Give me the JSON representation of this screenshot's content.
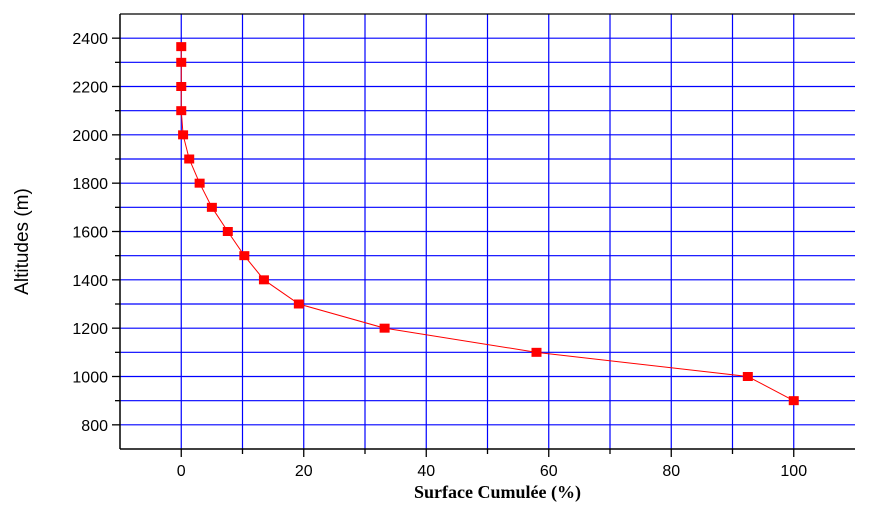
{
  "chart_data": {
    "type": "line",
    "title": "",
    "xlabel": "Surface Cumulée (%)",
    "ylabel": "Altitudes (m)",
    "xlim": [
      -10,
      110
    ],
    "ylim": [
      700,
      2500
    ],
    "xticks": [
      0,
      20,
      40,
      60,
      80,
      100
    ],
    "yticks": [
      800,
      1000,
      1200,
      1400,
      1600,
      1800,
      2000,
      2200,
      2400
    ],
    "x_tick_labels": [
      "0",
      "20",
      "40",
      "60",
      "80",
      "100"
    ],
    "y_tick_labels": [
      "800",
      "1000",
      "1200",
      "1400",
      "1600",
      "1800",
      "2000",
      "2200",
      "2400"
    ],
    "grid": true,
    "grid_color": "#0000ff",
    "series": [
      {
        "color": "#ff0000",
        "marker": "square",
        "points": [
          {
            "x": 0,
            "y": 2365
          },
          {
            "x": 0,
            "y": 2300
          },
          {
            "x": 0,
            "y": 2200
          },
          {
            "x": 0,
            "y": 2100
          },
          {
            "x": 0.3,
            "y": 2000
          },
          {
            "x": 1.3,
            "y": 1900
          },
          {
            "x": 3,
            "y": 1800
          },
          {
            "x": 5,
            "y": 1700
          },
          {
            "x": 7.6,
            "y": 1600
          },
          {
            "x": 10.3,
            "y": 1500
          },
          {
            "x": 13.5,
            "y": 1400
          },
          {
            "x": 19.2,
            "y": 1300
          },
          {
            "x": 33.2,
            "y": 1200
          },
          {
            "x": 58,
            "y": 1100
          },
          {
            "x": 92.5,
            "y": 1000
          },
          {
            "x": 100,
            "y": 900
          }
        ]
      }
    ]
  }
}
